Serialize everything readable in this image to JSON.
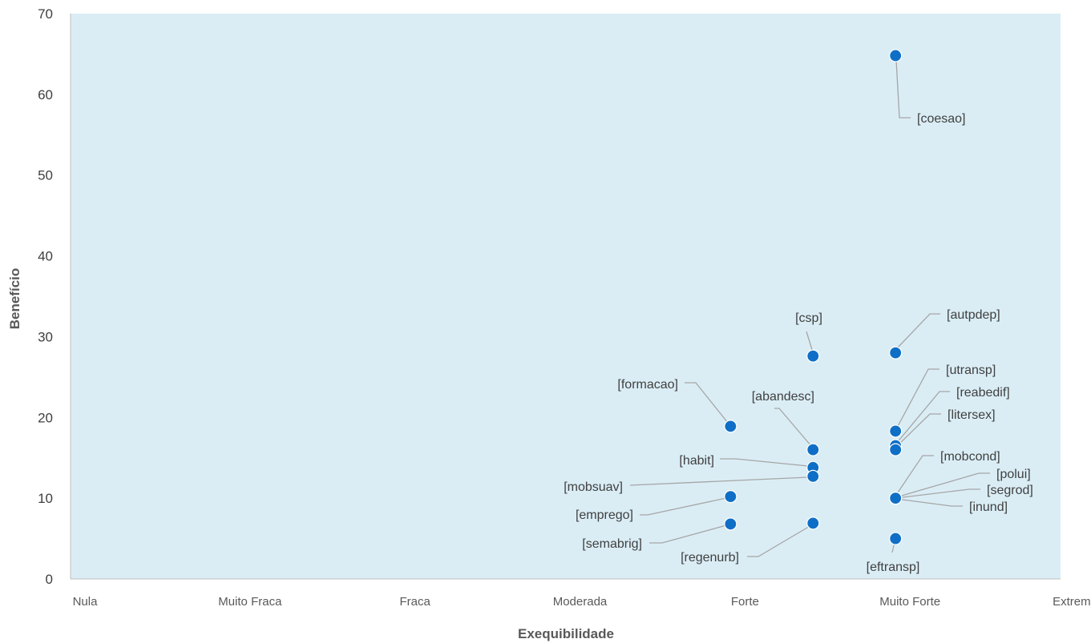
{
  "chart_data": {
    "type": "scatter",
    "xlabel": "Exequibilidade",
    "ylabel": "Benefício",
    "x_categories": [
      "Nula",
      "Muito Fraca",
      "Fraca",
      "Moderada",
      "Forte",
      "Muito Forte",
      "Extrema"
    ],
    "xlim": [
      0,
      6
    ],
    "ylim": [
      0,
      70
    ],
    "y_ticks": [
      0,
      10,
      20,
      30,
      40,
      50,
      60,
      70
    ],
    "grid": false,
    "background": "#daedf5",
    "marker_color": "#0f6fc6",
    "points": [
      {
        "label": "[coesao]",
        "x": 5.0,
        "y": 64.8
      },
      {
        "label": "[autpdep]",
        "x": 5.0,
        "y": 28.0
      },
      {
        "label": "[csp]",
        "x": 4.5,
        "y": 27.6
      },
      {
        "label": "[formacao]",
        "x": 4.0,
        "y": 18.9
      },
      {
        "label": "[utransp]",
        "x": 5.0,
        "y": 18.3
      },
      {
        "label": "[reabedif]",
        "x": 5.0,
        "y": 16.5
      },
      {
        "label": "[abandesc]",
        "x": 4.5,
        "y": 16.0
      },
      {
        "label": "[litersex]",
        "x": 5.0,
        "y": 16.0
      },
      {
        "label": "[habit]",
        "x": 4.5,
        "y": 13.8
      },
      {
        "label": "[mobsuav]",
        "x": 4.5,
        "y": 12.7
      },
      {
        "label": "[emprego]",
        "x": 4.0,
        "y": 10.2
      },
      {
        "label": "[mobcond]",
        "x": 5.0,
        "y": 10.0
      },
      {
        "label": "[polui]",
        "x": 5.0,
        "y": 10.0
      },
      {
        "label": "[segrod]",
        "x": 5.0,
        "y": 10.0
      },
      {
        "label": "[inund]",
        "x": 5.0,
        "y": 10.0
      },
      {
        "label": "[regenurb]",
        "x": 4.5,
        "y": 6.9
      },
      {
        "label": "[semabrig]",
        "x": 4.0,
        "y": 6.8
      },
      {
        "label": "[eftransp]",
        "x": 5.0,
        "y": 5.0
      }
    ]
  }
}
